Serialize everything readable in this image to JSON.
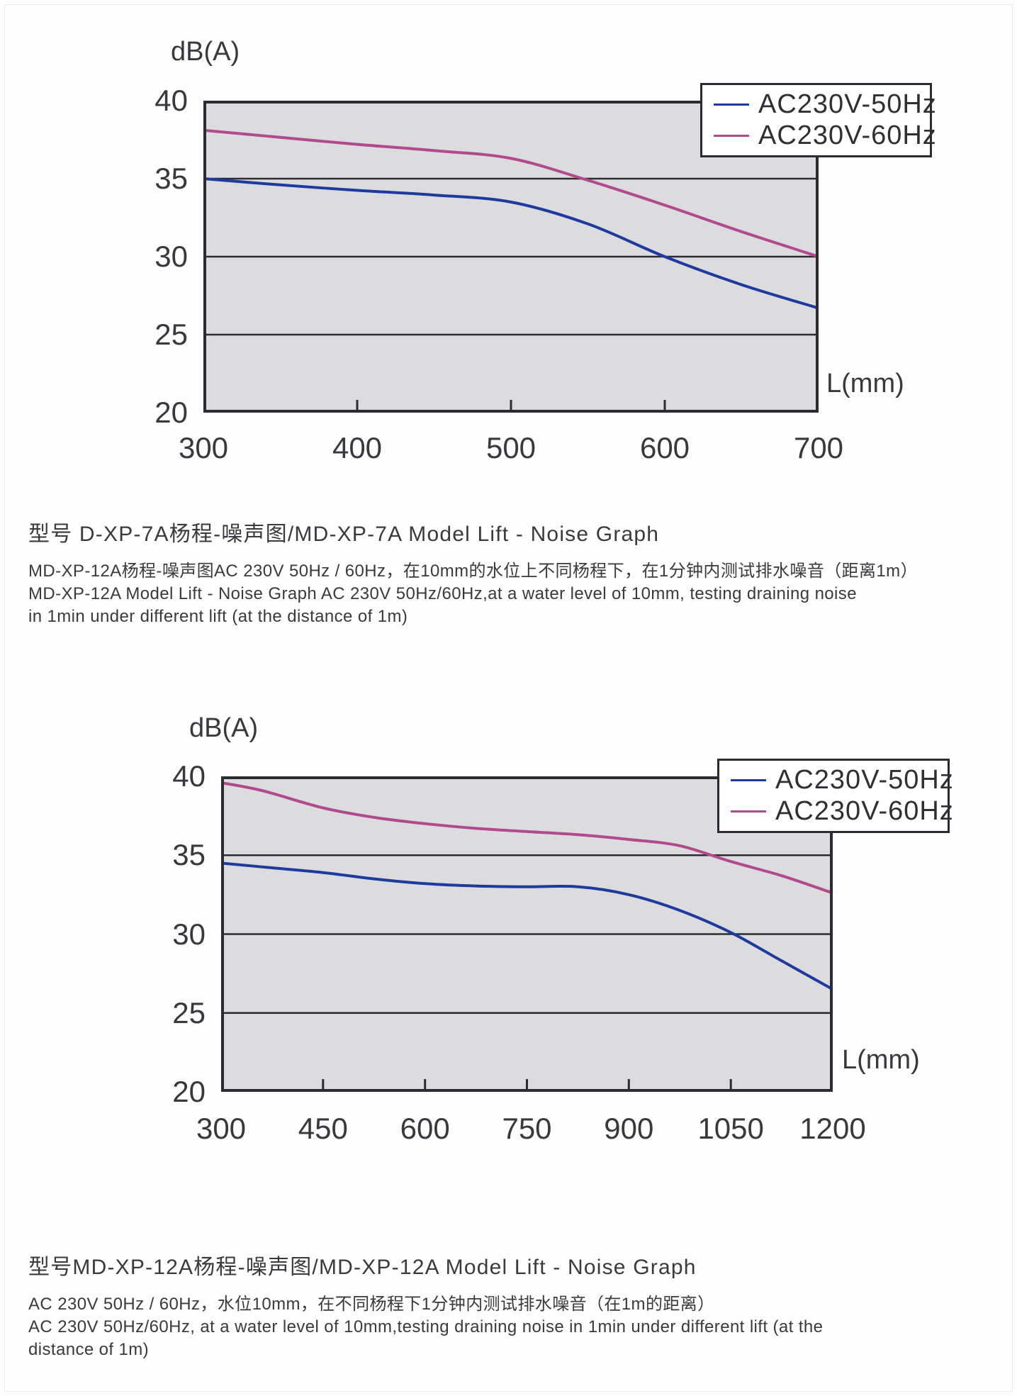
{
  "page": {
    "heading_1": "型号 D-XP-7A杨程-噪声图/MD-XP-7A Model Lift - Noise Graph",
    "para_1_lines": [
      "MD-XP-12A杨程-噪声图AC 230V 50Hz / 60Hz，在10mm的水位上不同杨程下，在1分钟内测试排水噪音（距离1m）",
      "MD-XP-12A Model Lift - Noise Graph AC 230V 50Hz/60Hz,at a water level of 10mm, testing draining noise",
      "in 1min under different lift (at the distance of 1m)"
    ],
    "heading_2": "型号MD-XP-12A杨程-噪声图/MD-XP-12A Model Lift - Noise Graph",
    "para_2_lines": [
      "AC 230V 50Hz / 60Hz，水位10mm，在不同杨程下1分钟内测试排水噪音（在1m的距离）",
      "AC 230V 50Hz/60Hz, at a water level of 10mm,testing draining noise in 1min under different lift (at the",
      "distance of 1m)"
    ]
  },
  "colors": {
    "plot_bg": "#dcdcde",
    "axis": "#2b2b31",
    "grid": "#2b2b31",
    "series_50hz": "#1e3a9e",
    "series_60hz": "#b04a8c",
    "legend_bg": "#ffffff",
    "text": "#3a3a3e"
  },
  "chart_data": [
    {
      "type": "line",
      "title": "MD-XP-7A Model Lift - Noise Graph",
      "y_axis_title": "dB(A)",
      "x_axis_title": "L(mm)",
      "xlim": [
        300,
        700
      ],
      "ylim": [
        20,
        40
      ],
      "x_ticks": [
        300,
        400,
        500,
        600,
        700
      ],
      "y_ticks": [
        40,
        35,
        30,
        25,
        20
      ],
      "y_gridlines": [
        35,
        30,
        25
      ],
      "grid": "horizontal",
      "legend_position": "top-right",
      "series": [
        {
          "name": "AC230V-50Hz",
          "color_key": "series_50hz",
          "points": [
            [
              300,
              35.0
            ],
            [
              350,
              34.6
            ],
            [
              400,
              34.25
            ],
            [
              450,
              33.95
            ],
            [
              500,
              33.5
            ],
            [
              550,
              32.1
            ],
            [
              600,
              30.0
            ],
            [
              650,
              28.2
            ],
            [
              700,
              26.7
            ]
          ]
        },
        {
          "name": "AC230V-60Hz",
          "color_key": "series_60hz",
          "points": [
            [
              300,
              38.1
            ],
            [
              350,
              37.65
            ],
            [
              400,
              37.2
            ],
            [
              450,
              36.8
            ],
            [
              500,
              36.3
            ],
            [
              550,
              34.9
            ],
            [
              600,
              33.3
            ],
            [
              650,
              31.6
            ],
            [
              700,
              30.0
            ]
          ]
        }
      ]
    },
    {
      "type": "line",
      "title": "MD-XP-12A Model Lift - Noise Graph",
      "y_axis_title": "dB(A)",
      "x_axis_title": "L(mm)",
      "xlim": [
        300,
        1200
      ],
      "ylim": [
        20,
        40
      ],
      "x_ticks": [
        300,
        450,
        600,
        750,
        900,
        1050,
        1200
      ],
      "y_ticks": [
        40,
        35,
        30,
        25,
        20
      ],
      "y_gridlines": [
        35,
        30,
        25
      ],
      "grid": "horizontal",
      "legend_position": "top-right",
      "series": [
        {
          "name": "AC230V-50Hz",
          "color_key": "series_50hz",
          "points": [
            [
              300,
              34.5
            ],
            [
              375,
              34.2
            ],
            [
              450,
              33.9
            ],
            [
              525,
              33.5
            ],
            [
              600,
              33.2
            ],
            [
              675,
              33.05
            ],
            [
              750,
              33.0
            ],
            [
              825,
              33.0
            ],
            [
              900,
              32.5
            ],
            [
              975,
              31.5
            ],
            [
              1050,
              30.1
            ],
            [
              1125,
              28.3
            ],
            [
              1200,
              26.5
            ]
          ]
        },
        {
          "name": "AC230V-60Hz",
          "color_key": "series_60hz",
          "points": [
            [
              300,
              39.6
            ],
            [
              360,
              39.1
            ],
            [
              450,
              38.0
            ],
            [
              525,
              37.4
            ],
            [
              600,
              37.0
            ],
            [
              675,
              36.7
            ],
            [
              750,
              36.5
            ],
            [
              825,
              36.3
            ],
            [
              900,
              36.0
            ],
            [
              975,
              35.6
            ],
            [
              1050,
              34.6
            ],
            [
              1125,
              33.7
            ],
            [
              1200,
              32.6
            ]
          ]
        }
      ]
    }
  ]
}
